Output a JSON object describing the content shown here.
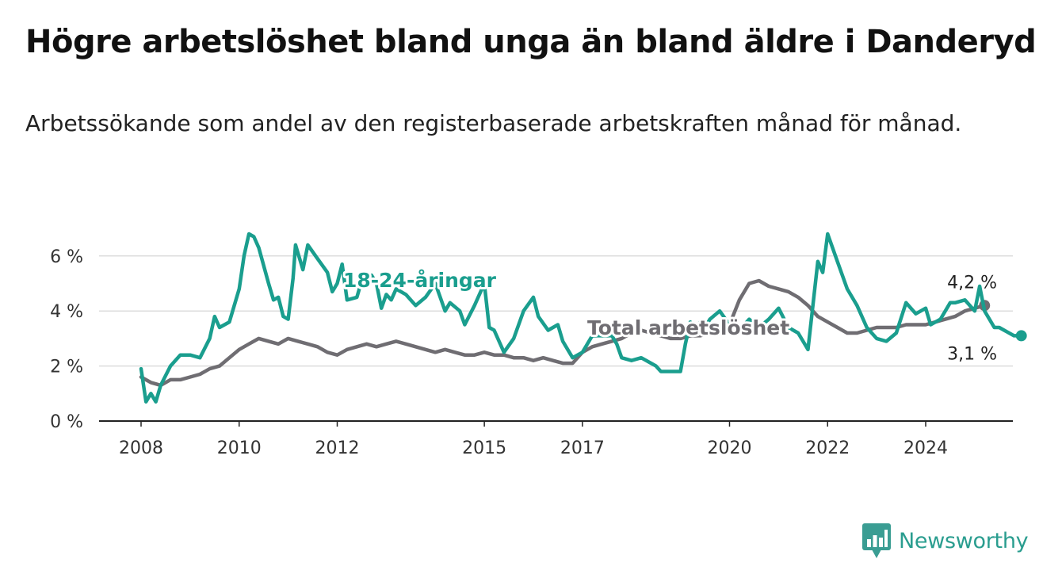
{
  "title": "Högre arbetslöshet bland unga än bland äldre i Danderyd",
  "subtitle": "Arbetssökande som andel av den registerbaserade arbetskraften månad för månad.",
  "brand": {
    "name": "Newsworthy",
    "icon": "bar-chart-logo-icon",
    "color": "#3a9d93"
  },
  "chart_data": {
    "type": "line",
    "title": "Högre arbetslöshet bland unga än bland äldre i Danderyd",
    "subtitle": "Arbetssökande som andel av den registerbaserade arbetskraften månad för månad.",
    "x_ticks": [
      2008,
      2010,
      2012,
      2015,
      2017,
      2020,
      2022,
      2024
    ],
    "y_ticks": [
      {
        "value": 0,
        "label": "0 %"
      },
      {
        "value": 2,
        "label": "2 %"
      },
      {
        "value": 4,
        "label": "4 %"
      },
      {
        "value": 6,
        "label": "6 %"
      }
    ],
    "xlim": [
      2007.2,
      2025.8
    ],
    "ylim": [
      0,
      6.5
    ],
    "grid": true,
    "series": [
      {
        "name": "Total arbetslöshet",
        "color": "#6f6d72",
        "end_label": "4,2 %",
        "points": [
          [
            2008.0,
            1.6
          ],
          [
            2008.2,
            1.4
          ],
          [
            2008.4,
            1.3
          ],
          [
            2008.6,
            1.5
          ],
          [
            2008.8,
            1.5
          ],
          [
            2009.0,
            1.6
          ],
          [
            2009.2,
            1.7
          ],
          [
            2009.4,
            1.9
          ],
          [
            2009.6,
            2.0
          ],
          [
            2009.8,
            2.3
          ],
          [
            2010.0,
            2.6
          ],
          [
            2010.2,
            2.8
          ],
          [
            2010.4,
            3.0
          ],
          [
            2010.6,
            2.9
          ],
          [
            2010.8,
            2.8
          ],
          [
            2011.0,
            3.0
          ],
          [
            2011.2,
            2.9
          ],
          [
            2011.4,
            2.8
          ],
          [
            2011.6,
            2.7
          ],
          [
            2011.8,
            2.5
          ],
          [
            2012.0,
            2.4
          ],
          [
            2012.2,
            2.6
          ],
          [
            2012.4,
            2.7
          ],
          [
            2012.6,
            2.8
          ],
          [
            2012.8,
            2.7
          ],
          [
            2013.0,
            2.8
          ],
          [
            2013.2,
            2.9
          ],
          [
            2013.4,
            2.8
          ],
          [
            2013.6,
            2.7
          ],
          [
            2013.8,
            2.6
          ],
          [
            2014.0,
            2.5
          ],
          [
            2014.2,
            2.6
          ],
          [
            2014.4,
            2.5
          ],
          [
            2014.6,
            2.4
          ],
          [
            2014.8,
            2.4
          ],
          [
            2015.0,
            2.5
          ],
          [
            2015.2,
            2.4
          ],
          [
            2015.4,
            2.4
          ],
          [
            2015.6,
            2.3
          ],
          [
            2015.8,
            2.3
          ],
          [
            2016.0,
            2.2
          ],
          [
            2016.2,
            2.3
          ],
          [
            2016.4,
            2.2
          ],
          [
            2016.6,
            2.1
          ],
          [
            2016.8,
            2.1
          ],
          [
            2017.0,
            2.5
          ],
          [
            2017.2,
            2.7
          ],
          [
            2017.4,
            2.8
          ],
          [
            2017.6,
            2.9
          ],
          [
            2017.8,
            3.0
          ],
          [
            2018.0,
            3.2
          ],
          [
            2018.2,
            3.3
          ],
          [
            2018.4,
            3.2
          ],
          [
            2018.6,
            3.1
          ],
          [
            2018.8,
            3.0
          ],
          [
            2019.0,
            3.0
          ],
          [
            2019.2,
            3.1
          ],
          [
            2019.4,
            3.1
          ],
          [
            2019.6,
            3.2
          ],
          [
            2019.8,
            3.3
          ],
          [
            2020.0,
            3.5
          ],
          [
            2020.2,
            4.4
          ],
          [
            2020.4,
            5.0
          ],
          [
            2020.6,
            5.1
          ],
          [
            2020.8,
            4.9
          ],
          [
            2021.0,
            4.8
          ],
          [
            2021.2,
            4.7
          ],
          [
            2021.4,
            4.5
          ],
          [
            2021.6,
            4.2
          ],
          [
            2021.8,
            3.8
          ],
          [
            2022.0,
            3.6
          ],
          [
            2022.2,
            3.4
          ],
          [
            2022.4,
            3.2
          ],
          [
            2022.6,
            3.2
          ],
          [
            2022.8,
            3.3
          ],
          [
            2023.0,
            3.4
          ],
          [
            2023.2,
            3.4
          ],
          [
            2023.4,
            3.4
          ],
          [
            2023.6,
            3.5
          ],
          [
            2023.8,
            3.5
          ],
          [
            2024.0,
            3.5
          ],
          [
            2024.2,
            3.6
          ],
          [
            2024.4,
            3.7
          ],
          [
            2024.6,
            3.8
          ],
          [
            2024.8,
            4.0
          ],
          [
            2025.0,
            4.1
          ],
          [
            2025.2,
            4.2
          ]
        ]
      },
      {
        "name": "18-24-åringar",
        "color": "#1a9e8e",
        "end_label": "3,1 %",
        "points": [
          [
            2008.0,
            1.9
          ],
          [
            2008.1,
            0.7
          ],
          [
            2008.2,
            1.0
          ],
          [
            2008.3,
            0.7
          ],
          [
            2008.4,
            1.3
          ],
          [
            2008.6,
            2.0
          ],
          [
            2008.8,
            2.4
          ],
          [
            2009.0,
            2.4
          ],
          [
            2009.2,
            2.3
          ],
          [
            2009.4,
            3.0
          ],
          [
            2009.5,
            3.8
          ],
          [
            2009.6,
            3.4
          ],
          [
            2009.8,
            3.6
          ],
          [
            2010.0,
            4.8
          ],
          [
            2010.1,
            6.0
          ],
          [
            2010.2,
            6.8
          ],
          [
            2010.3,
            6.7
          ],
          [
            2010.4,
            6.3
          ],
          [
            2010.6,
            5.0
          ],
          [
            2010.7,
            4.4
          ],
          [
            2010.8,
            4.5
          ],
          [
            2010.9,
            3.8
          ],
          [
            2011.0,
            3.7
          ],
          [
            2011.1,
            5.2
          ],
          [
            2011.15,
            6.4
          ],
          [
            2011.3,
            5.5
          ],
          [
            2011.4,
            6.4
          ],
          [
            2011.6,
            5.9
          ],
          [
            2011.8,
            5.4
          ],
          [
            2011.9,
            4.7
          ],
          [
            2012.0,
            5.0
          ],
          [
            2012.1,
            5.7
          ],
          [
            2012.2,
            4.4
          ],
          [
            2012.4,
            4.5
          ],
          [
            2012.5,
            5.1
          ],
          [
            2012.7,
            5.3
          ],
          [
            2012.8,
            5.0
          ],
          [
            2012.9,
            4.1
          ],
          [
            2013.0,
            4.6
          ],
          [
            2013.1,
            4.4
          ],
          [
            2013.2,
            4.8
          ],
          [
            2013.4,
            4.6
          ],
          [
            2013.6,
            4.2
          ],
          [
            2013.8,
            4.5
          ],
          [
            2014.0,
            5.0
          ],
          [
            2014.2,
            4.0
          ],
          [
            2014.3,
            4.3
          ],
          [
            2014.5,
            4.0
          ],
          [
            2014.6,
            3.5
          ],
          [
            2014.8,
            4.2
          ],
          [
            2015.0,
            5.0
          ],
          [
            2015.1,
            3.4
          ],
          [
            2015.2,
            3.3
          ],
          [
            2015.4,
            2.5
          ],
          [
            2015.6,
            3.0
          ],
          [
            2015.8,
            4.0
          ],
          [
            2016.0,
            4.5
          ],
          [
            2016.1,
            3.8
          ],
          [
            2016.3,
            3.3
          ],
          [
            2016.5,
            3.5
          ],
          [
            2016.6,
            2.9
          ],
          [
            2016.7,
            2.6
          ],
          [
            2016.8,
            2.3
          ],
          [
            2017.0,
            2.5
          ],
          [
            2017.2,
            3.1
          ],
          [
            2017.4,
            3.1
          ],
          [
            2017.6,
            3.1
          ],
          [
            2017.7,
            2.8
          ],
          [
            2017.8,
            2.3
          ],
          [
            2018.0,
            2.2
          ],
          [
            2018.2,
            2.3
          ],
          [
            2018.4,
            2.1
          ],
          [
            2018.5,
            2.0
          ],
          [
            2018.6,
            1.8
          ],
          [
            2018.8,
            1.8
          ],
          [
            2019.0,
            1.8
          ],
          [
            2019.1,
            2.8
          ],
          [
            2019.2,
            3.6
          ],
          [
            2019.3,
            3.3
          ],
          [
            2019.4,
            3.6
          ],
          [
            2019.5,
            3.4
          ],
          [
            2019.6,
            3.7
          ],
          [
            2019.8,
            4.0
          ],
          [
            2020.0,
            3.5
          ],
          [
            2020.2,
            3.3
          ],
          [
            2020.4,
            3.7
          ],
          [
            2020.6,
            3.4
          ],
          [
            2020.8,
            3.7
          ],
          [
            2021.0,
            4.1
          ],
          [
            2021.2,
            3.4
          ],
          [
            2021.4,
            3.2
          ],
          [
            2021.6,
            2.6
          ],
          [
            2021.8,
            5.8
          ],
          [
            2021.9,
            5.4
          ],
          [
            2022.0,
            6.8
          ],
          [
            2022.2,
            5.8
          ],
          [
            2022.4,
            4.8
          ],
          [
            2022.6,
            4.2
          ],
          [
            2022.8,
            3.4
          ],
          [
            2023.0,
            3.0
          ],
          [
            2023.2,
            2.9
          ],
          [
            2023.4,
            3.2
          ],
          [
            2023.6,
            4.3
          ],
          [
            2023.8,
            3.9
          ],
          [
            2024.0,
            4.1
          ],
          [
            2024.1,
            3.5
          ],
          [
            2024.3,
            3.7
          ],
          [
            2024.5,
            4.3
          ],
          [
            2024.6,
            4.3
          ],
          [
            2024.8,
            4.4
          ],
          [
            2025.0,
            4.0
          ],
          [
            2025.1,
            4.9
          ],
          [
            2025.2,
            4.0
          ],
          [
            2025.4,
            3.4
          ],
          [
            2025.5,
            3.4
          ],
          [
            2025.6,
            3.3
          ],
          [
            2025.8,
            3.1
          ],
          [
            2025.95,
            3.1
          ]
        ]
      }
    ]
  }
}
